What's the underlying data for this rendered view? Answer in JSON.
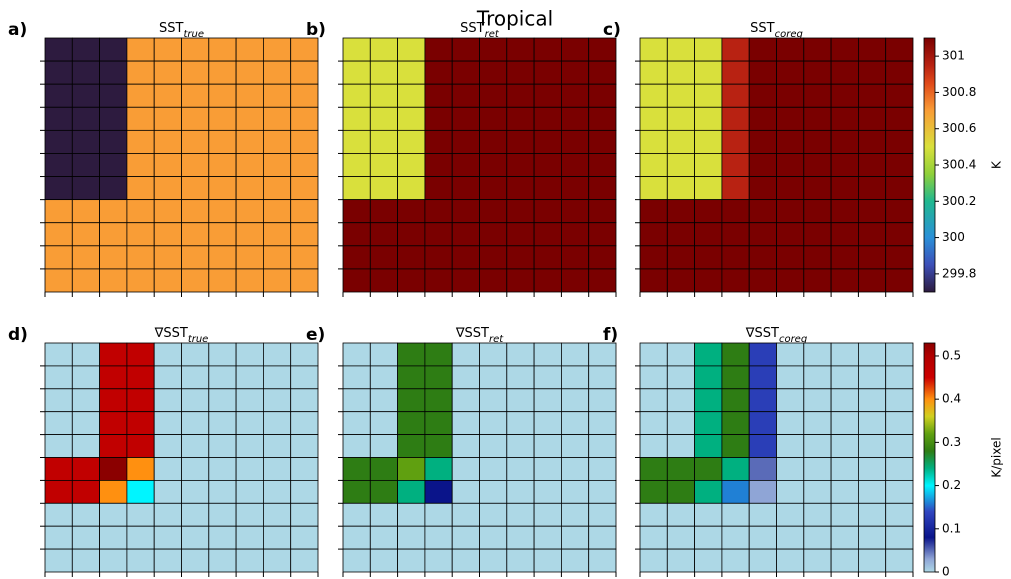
{
  "figure_title": "Tropical",
  "chart_data": [
    {
      "type": "heatmap",
      "label": "a)",
      "title": "SST",
      "title_sub": "true",
      "zlim": [
        299.7,
        301.1
      ],
      "colorscale": [
        [
          299.7,
          "#2d1b3f"
        ],
        [
          299.85,
          "#3d4fb8"
        ],
        [
          300.0,
          "#2a90d8"
        ],
        [
          300.2,
          "#20b890"
        ],
        [
          300.35,
          "#8fd03a"
        ],
        [
          300.5,
          "#d9e03c"
        ],
        [
          300.7,
          "#f99d36"
        ],
        [
          300.85,
          "#e04a1a"
        ],
        [
          300.95,
          "#b82212"
        ],
        [
          301.1,
          "#7a0000"
        ]
      ],
      "z": [
        [
          299.7,
          299.7,
          299.7,
          300.7,
          300.7,
          300.7,
          300.7,
          300.7,
          300.7,
          300.7
        ],
        [
          299.7,
          299.7,
          299.7,
          300.7,
          300.7,
          300.7,
          300.7,
          300.7,
          300.7,
          300.7
        ],
        [
          299.7,
          299.7,
          299.7,
          300.7,
          300.7,
          300.7,
          300.7,
          300.7,
          300.7,
          300.7
        ],
        [
          299.7,
          299.7,
          299.7,
          300.7,
          300.7,
          300.7,
          300.7,
          300.7,
          300.7,
          300.7
        ],
        [
          299.7,
          299.7,
          299.7,
          300.7,
          300.7,
          300.7,
          300.7,
          300.7,
          300.7,
          300.7
        ],
        [
          299.7,
          299.7,
          299.7,
          300.7,
          300.7,
          300.7,
          300.7,
          300.7,
          300.7,
          300.7
        ],
        [
          299.7,
          299.7,
          299.7,
          300.7,
          300.7,
          300.7,
          300.7,
          300.7,
          300.7,
          300.7
        ],
        [
          300.7,
          300.7,
          300.7,
          300.7,
          300.7,
          300.7,
          300.7,
          300.7,
          300.7,
          300.7
        ],
        [
          300.7,
          300.7,
          300.7,
          300.7,
          300.7,
          300.7,
          300.7,
          300.7,
          300.7,
          300.7
        ],
        [
          300.7,
          300.7,
          300.7,
          300.7,
          300.7,
          300.7,
          300.7,
          300.7,
          300.7,
          300.7
        ],
        [
          300.7,
          300.7,
          300.7,
          300.7,
          300.7,
          300.7,
          300.7,
          300.7,
          300.7,
          300.7
        ]
      ]
    },
    {
      "type": "heatmap",
      "label": "b)",
      "title": "SST",
      "title_sub": "ret",
      "zlim": [
        299.7,
        301.1
      ],
      "colorscale": [
        [
          299.7,
          "#2d1b3f"
        ],
        [
          299.85,
          "#3d4fb8"
        ],
        [
          300.0,
          "#2a90d8"
        ],
        [
          300.2,
          "#20b890"
        ],
        [
          300.35,
          "#8fd03a"
        ],
        [
          300.5,
          "#d9e03c"
        ],
        [
          300.7,
          "#f99d36"
        ],
        [
          300.85,
          "#e04a1a"
        ],
        [
          300.95,
          "#b82212"
        ],
        [
          301.1,
          "#7a0000"
        ]
      ],
      "z": [
        [
          300.5,
          300.5,
          300.5,
          301.1,
          301.1,
          301.1,
          301.1,
          301.1,
          301.1,
          301.1
        ],
        [
          300.5,
          300.5,
          300.5,
          301.1,
          301.1,
          301.1,
          301.1,
          301.1,
          301.1,
          301.1
        ],
        [
          300.5,
          300.5,
          300.5,
          301.1,
          301.1,
          301.1,
          301.1,
          301.1,
          301.1,
          301.1
        ],
        [
          300.5,
          300.5,
          300.5,
          301.1,
          301.1,
          301.1,
          301.1,
          301.1,
          301.1,
          301.1
        ],
        [
          300.5,
          300.5,
          300.5,
          301.1,
          301.1,
          301.1,
          301.1,
          301.1,
          301.1,
          301.1
        ],
        [
          300.5,
          300.5,
          300.5,
          301.1,
          301.1,
          301.1,
          301.1,
          301.1,
          301.1,
          301.1
        ],
        [
          300.5,
          300.5,
          300.5,
          301.1,
          301.1,
          301.1,
          301.1,
          301.1,
          301.1,
          301.1
        ],
        [
          301.1,
          301.1,
          301.1,
          301.1,
          301.1,
          301.1,
          301.1,
          301.1,
          301.1,
          301.1
        ],
        [
          301.1,
          301.1,
          301.1,
          301.1,
          301.1,
          301.1,
          301.1,
          301.1,
          301.1,
          301.1
        ],
        [
          301.1,
          301.1,
          301.1,
          301.1,
          301.1,
          301.1,
          301.1,
          301.1,
          301.1,
          301.1
        ],
        [
          301.1,
          301.1,
          301.1,
          301.1,
          301.1,
          301.1,
          301.1,
          301.1,
          301.1,
          301.1
        ]
      ]
    },
    {
      "type": "heatmap",
      "label": "c)",
      "title": "SST",
      "title_sub": "coreg",
      "zlim": [
        299.7,
        301.1
      ],
      "colorscale": [
        [
          299.7,
          "#2d1b3f"
        ],
        [
          299.85,
          "#3d4fb8"
        ],
        [
          300.0,
          "#2a90d8"
        ],
        [
          300.2,
          "#20b890"
        ],
        [
          300.35,
          "#8fd03a"
        ],
        [
          300.5,
          "#d9e03c"
        ],
        [
          300.7,
          "#f99d36"
        ],
        [
          300.85,
          "#e04a1a"
        ],
        [
          300.95,
          "#b82212"
        ],
        [
          301.1,
          "#7a0000"
        ]
      ],
      "colorbar": {
        "label": "K",
        "ticks": [
          299.8,
          300.0,
          300.2,
          300.4,
          300.6,
          300.8,
          301.0
        ]
      },
      "z": [
        [
          300.5,
          300.5,
          300.5,
          300.95,
          301.1,
          301.1,
          301.1,
          301.1,
          301.1,
          301.1
        ],
        [
          300.5,
          300.5,
          300.5,
          300.95,
          301.1,
          301.1,
          301.1,
          301.1,
          301.1,
          301.1
        ],
        [
          300.5,
          300.5,
          300.5,
          300.95,
          301.1,
          301.1,
          301.1,
          301.1,
          301.1,
          301.1
        ],
        [
          300.5,
          300.5,
          300.5,
          300.95,
          301.1,
          301.1,
          301.1,
          301.1,
          301.1,
          301.1
        ],
        [
          300.5,
          300.5,
          300.5,
          300.95,
          301.1,
          301.1,
          301.1,
          301.1,
          301.1,
          301.1
        ],
        [
          300.5,
          300.5,
          300.5,
          300.95,
          301.1,
          301.1,
          301.1,
          301.1,
          301.1,
          301.1
        ],
        [
          300.5,
          300.5,
          300.5,
          300.95,
          301.1,
          301.1,
          301.1,
          301.1,
          301.1,
          301.1
        ],
        [
          301.1,
          301.1,
          301.1,
          301.1,
          301.1,
          301.1,
          301.1,
          301.1,
          301.1,
          301.1
        ],
        [
          301.1,
          301.1,
          301.1,
          301.1,
          301.1,
          301.1,
          301.1,
          301.1,
          301.1,
          301.1
        ],
        [
          301.1,
          301.1,
          301.1,
          301.1,
          301.1,
          301.1,
          301.1,
          301.1,
          301.1,
          301.1
        ],
        [
          301.1,
          301.1,
          301.1,
          301.1,
          301.1,
          301.1,
          301.1,
          301.1,
          301.1,
          301.1
        ]
      ]
    },
    {
      "type": "heatmap",
      "label": "d)",
      "title": "∇SST",
      "title_sub": "true",
      "zlim": [
        0,
        0.53
      ],
      "colorscale": [
        [
          0,
          "#add8e6"
        ],
        [
          0.03,
          "#8fa5d6"
        ],
        [
          0.08,
          "#0a148a"
        ],
        [
          0.14,
          "#3046c0"
        ],
        [
          0.2,
          "#00f5ff"
        ],
        [
          0.24,
          "#00b080"
        ],
        [
          0.28,
          "#2e7d14"
        ],
        [
          0.32,
          "#60a010"
        ],
        [
          0.36,
          "#d0d020"
        ],
        [
          0.4,
          "#ff9010"
        ],
        [
          0.45,
          "#cc0000"
        ],
        [
          0.5,
          "#b00000"
        ],
        [
          0.53,
          "#8b0000"
        ]
      ],
      "z": [
        [
          0,
          0,
          0.47,
          0.47,
          0,
          0,
          0,
          0,
          0,
          0
        ],
        [
          0,
          0,
          0.47,
          0.47,
          0,
          0,
          0,
          0,
          0,
          0
        ],
        [
          0,
          0,
          0.47,
          0.47,
          0,
          0,
          0,
          0,
          0,
          0
        ],
        [
          0,
          0,
          0.47,
          0.47,
          0,
          0,
          0,
          0,
          0,
          0
        ],
        [
          0,
          0,
          0.47,
          0.47,
          0,
          0,
          0,
          0,
          0,
          0
        ],
        [
          0.47,
          0.47,
          0.53,
          0.4,
          0,
          0,
          0,
          0,
          0,
          0
        ],
        [
          0.47,
          0.47,
          0.4,
          0.2,
          0,
          0,
          0,
          0,
          0,
          0
        ],
        [
          0,
          0,
          0,
          0,
          0,
          0,
          0,
          0,
          0,
          0
        ],
        [
          0,
          0,
          0,
          0,
          0,
          0,
          0,
          0,
          0,
          0
        ],
        [
          0,
          0,
          0,
          0,
          0,
          0,
          0,
          0,
          0,
          0
        ]
      ]
    },
    {
      "type": "heatmap",
      "label": "e)",
      "title": "∇SST",
      "title_sub": "ret",
      "zlim": [
        0,
        0.53
      ],
      "colorscale": [
        [
          0,
          "#add8e6"
        ],
        [
          0.03,
          "#8fa5d6"
        ],
        [
          0.08,
          "#0a148a"
        ],
        [
          0.14,
          "#3046c0"
        ],
        [
          0.2,
          "#00f5ff"
        ],
        [
          0.24,
          "#00b080"
        ],
        [
          0.28,
          "#2e7d14"
        ],
        [
          0.32,
          "#60a010"
        ],
        [
          0.36,
          "#d0d020"
        ],
        [
          0.4,
          "#ff9010"
        ],
        [
          0.45,
          "#cc0000"
        ],
        [
          0.5,
          "#b00000"
        ],
        [
          0.53,
          "#8b0000"
        ]
      ],
      "z": [
        [
          0,
          0,
          0.28,
          0.28,
          0,
          0,
          0,
          0,
          0,
          0
        ],
        [
          0,
          0,
          0.28,
          0.28,
          0,
          0,
          0,
          0,
          0,
          0
        ],
        [
          0,
          0,
          0.28,
          0.28,
          0,
          0,
          0,
          0,
          0,
          0
        ],
        [
          0,
          0,
          0.28,
          0.28,
          0,
          0,
          0,
          0,
          0,
          0
        ],
        [
          0,
          0,
          0.28,
          0.28,
          0,
          0,
          0,
          0,
          0,
          0
        ],
        [
          0.28,
          0.28,
          0.32,
          0.24,
          0,
          0,
          0,
          0,
          0,
          0
        ],
        [
          0.28,
          0.28,
          0.24,
          0.08,
          0,
          0,
          0,
          0,
          0,
          0
        ],
        [
          0,
          0,
          0,
          0,
          0,
          0,
          0,
          0,
          0,
          0
        ],
        [
          0,
          0,
          0,
          0,
          0,
          0,
          0,
          0,
          0,
          0
        ],
        [
          0,
          0,
          0,
          0,
          0,
          0,
          0,
          0,
          0,
          0
        ]
      ]
    },
    {
      "type": "heatmap",
      "label": "f)",
      "title": "∇SST",
      "title_sub": "coreg",
      "zlim": [
        0,
        0.53
      ],
      "colorscale": [
        [
          0,
          "#add8e6"
        ],
        [
          0.03,
          "#8fa5d6"
        ],
        [
          0.08,
          "#0a148a"
        ],
        [
          0.14,
          "#3046c0"
        ],
        [
          0.2,
          "#00f5ff"
        ],
        [
          0.24,
          "#00b080"
        ],
        [
          0.28,
          "#2e7d14"
        ],
        [
          0.32,
          "#60a010"
        ],
        [
          0.36,
          "#d0d020"
        ],
        [
          0.4,
          "#ff9010"
        ],
        [
          0.45,
          "#cc0000"
        ],
        [
          0.5,
          "#b00000"
        ],
        [
          0.53,
          "#8b0000"
        ]
      ],
      "colorbar": {
        "label": "K/pixel",
        "ticks": [
          0.0,
          0.1,
          0.2,
          0.3,
          0.4,
          0.5
        ]
      },
      "z": [
        [
          0,
          0,
          0.24,
          0.28,
          0.13,
          0,
          0,
          0,
          0,
          0
        ],
        [
          0,
          0,
          0.24,
          0.28,
          0.13,
          0,
          0,
          0,
          0,
          0
        ],
        [
          0,
          0,
          0.24,
          0.28,
          0.13,
          0,
          0,
          0,
          0,
          0
        ],
        [
          0,
          0,
          0.24,
          0.28,
          0.13,
          0,
          0,
          0,
          0,
          0
        ],
        [
          0,
          0,
          0.24,
          0.28,
          0.13,
          0,
          0,
          0,
          0,
          0
        ],
        [
          0.28,
          0.28,
          0.28,
          0.24,
          0.05,
          0,
          0,
          0,
          0,
          0
        ],
        [
          0.28,
          0.28,
          0.24,
          0.16,
          0.03,
          0,
          0,
          0,
          0,
          0
        ],
        [
          0,
          0,
          0,
          0,
          0,
          0,
          0,
          0,
          0,
          0
        ],
        [
          0,
          0,
          0,
          0,
          0,
          0,
          0,
          0,
          0,
          0
        ],
        [
          0,
          0,
          0,
          0,
          0,
          0,
          0,
          0,
          0,
          0
        ]
      ]
    }
  ]
}
